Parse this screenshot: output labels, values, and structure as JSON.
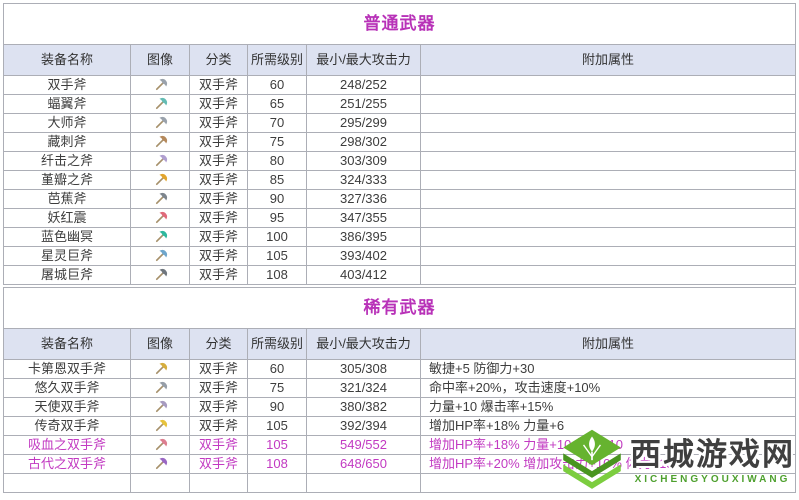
{
  "colors": {
    "title_magenta": "#b832b8",
    "highlight_magenta": "#c23ac2",
    "header_bg": "#dde2f1",
    "grid_border": "#acaeb6",
    "outer_border": "#8f949c",
    "body_text": "#3d3d3d",
    "watermark_green": "#4ea02e"
  },
  "columns": [
    "装备名称",
    "图像",
    "分类",
    "所需级别",
    "最小/最大攻击力",
    "附加属性"
  ],
  "tables": [
    {
      "title": "普通武器",
      "empty_trailing_row": false,
      "rows": [
        {
          "name": "双手斧",
          "icon": "axe-icon",
          "icon_color": "#9aa2ac",
          "category": "双手斧",
          "level": "60",
          "attack": "248/252",
          "attrs": "",
          "highlight": false
        },
        {
          "name": "蝠翼斧",
          "icon": "axe-icon",
          "icon_color": "#64bcb4",
          "category": "双手斧",
          "level": "65",
          "attack": "251/255",
          "attrs": "",
          "highlight": false
        },
        {
          "name": "大师斧",
          "icon": "axe-icon",
          "icon_color": "#9aa2ac",
          "category": "双手斧",
          "level": "70",
          "attack": "295/299",
          "attrs": "",
          "highlight": false
        },
        {
          "name": "藏刺斧",
          "icon": "axe-icon",
          "icon_color": "#b5895c",
          "category": "双手斧",
          "level": "75",
          "attack": "298/302",
          "attrs": "",
          "highlight": false
        },
        {
          "name": "纤击之斧",
          "icon": "axe-icon",
          "icon_color": "#b09fd0",
          "category": "双手斧",
          "level": "80",
          "attack": "303/309",
          "attrs": "",
          "highlight": false
        },
        {
          "name": "堇瓣之斧",
          "icon": "axe-icon",
          "icon_color": "#e2a52e",
          "category": "双手斧",
          "level": "85",
          "attack": "324/333",
          "attrs": "",
          "highlight": false
        },
        {
          "name": "芭蕉斧",
          "icon": "axe-icon",
          "icon_color": "#7d858d",
          "category": "双手斧",
          "level": "90",
          "attack": "327/336",
          "attrs": "",
          "highlight": false
        },
        {
          "name": "妖红震",
          "icon": "axe-icon",
          "icon_color": "#e06a7a",
          "category": "双手斧",
          "level": "95",
          "attack": "347/355",
          "attrs": "",
          "highlight": false
        },
        {
          "name": "蓝色幽冥",
          "icon": "axe-icon",
          "icon_color": "#2eb89e",
          "category": "双手斧",
          "level": "100",
          "attack": "386/395",
          "attrs": "",
          "highlight": false
        },
        {
          "name": "星灵巨斧",
          "icon": "axe-icon",
          "icon_color": "#6fa6cc",
          "category": "双手斧",
          "level": "105",
          "attack": "393/402",
          "attrs": "",
          "highlight": false
        },
        {
          "name": "屠城巨斧",
          "icon": "axe-icon",
          "icon_color": "#6f767e",
          "category": "双手斧",
          "level": "108",
          "attack": "403/412",
          "attrs": "",
          "highlight": false
        }
      ]
    },
    {
      "title": "稀有武器",
      "empty_trailing_row": true,
      "rows": [
        {
          "name": "卡第恩双手斧",
          "icon": "axe-icon",
          "icon_color": "#d6ae3e",
          "category": "双手斧",
          "level": "60",
          "attack": "305/308",
          "attrs": "敏捷+5 防御力+30",
          "highlight": false
        },
        {
          "name": "悠久双手斧",
          "icon": "axe-icon",
          "icon_color": "#969ea8",
          "category": "双手斧",
          "level": "75",
          "attack": "321/324",
          "attrs": "命中率+20%，攻击速度+10%",
          "highlight": false
        },
        {
          "name": "天使双手斧",
          "icon": "axe-icon",
          "icon_color": "#a79bc0",
          "category": "双手斧",
          "level": "90",
          "attack": "380/382",
          "attrs": "力量+10 爆击率+15%",
          "highlight": false
        },
        {
          "name": "传奇双手斧",
          "icon": "axe-icon",
          "icon_color": "#e7c33c",
          "category": "双手斧",
          "level": "105",
          "attack": "392/394",
          "attrs": "增加HP率+18% 力量+6",
          "highlight": false
        },
        {
          "name": "吸血之双手斧",
          "icon": "axe-icon",
          "icon_color": "#dd7e90",
          "category": "双手斧",
          "level": "105",
          "attack": "549/552",
          "attrs": "增加HP率+18% 力量+10 体力+10",
          "highlight": true
        },
        {
          "name": "古代之双手斧",
          "icon": "axe-icon",
          "icon_color": "#9a67c4",
          "category": "双手斧",
          "level": "108",
          "attack": "648/650",
          "attrs": "增加HP率+20% 增加攻击力+10% 体力+15",
          "highlight": true
        }
      ]
    }
  ],
  "watermark": {
    "title": "西城游戏网",
    "subtitle": "XICHENGYOUXIWANG"
  }
}
